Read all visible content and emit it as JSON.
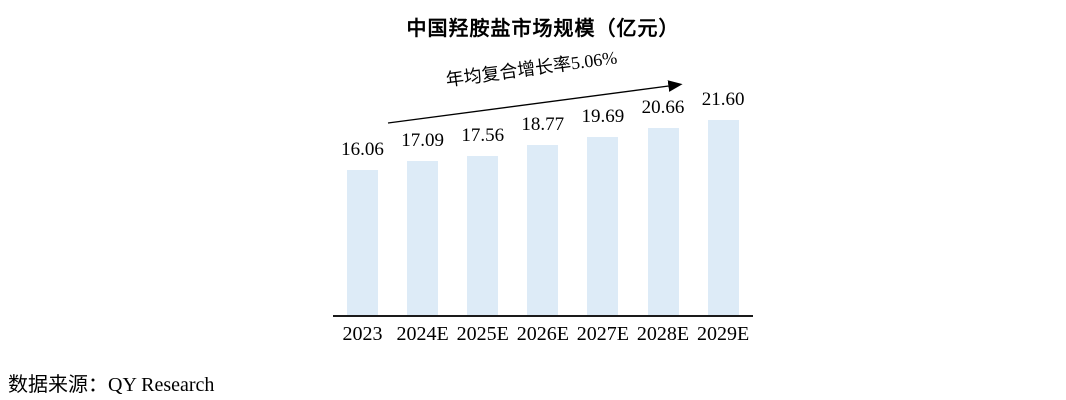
{
  "title": "中国羟胺盐市场规模（亿元）",
  "annotation": {
    "cagr_label": "年均复合增长率5.06%"
  },
  "source_label": "数据来源：QY Research",
  "chart_data": {
    "type": "bar",
    "title": "中国羟胺盐市场规模（亿元）",
    "categories": [
      "2023",
      "2024E",
      "2025E",
      "2026E",
      "2027E",
      "2028E",
      "2029E"
    ],
    "values": [
      16.06,
      17.09,
      17.56,
      18.77,
      19.69,
      20.66,
      21.6
    ],
    "data_labels": [
      "16.06",
      "17.09",
      "17.56",
      "18.77",
      "19.69",
      "20.66",
      "21.60"
    ],
    "annotation": "年均复合增长率5.06%",
    "xlabel": "",
    "ylabel": "",
    "ylim": [
      0,
      22
    ],
    "grid": false,
    "legend": "none",
    "bar_color": "#DDEBF7",
    "axis_color": "#1a1a1a",
    "text_color": "#000000",
    "source": "数据来源：QY Research"
  }
}
